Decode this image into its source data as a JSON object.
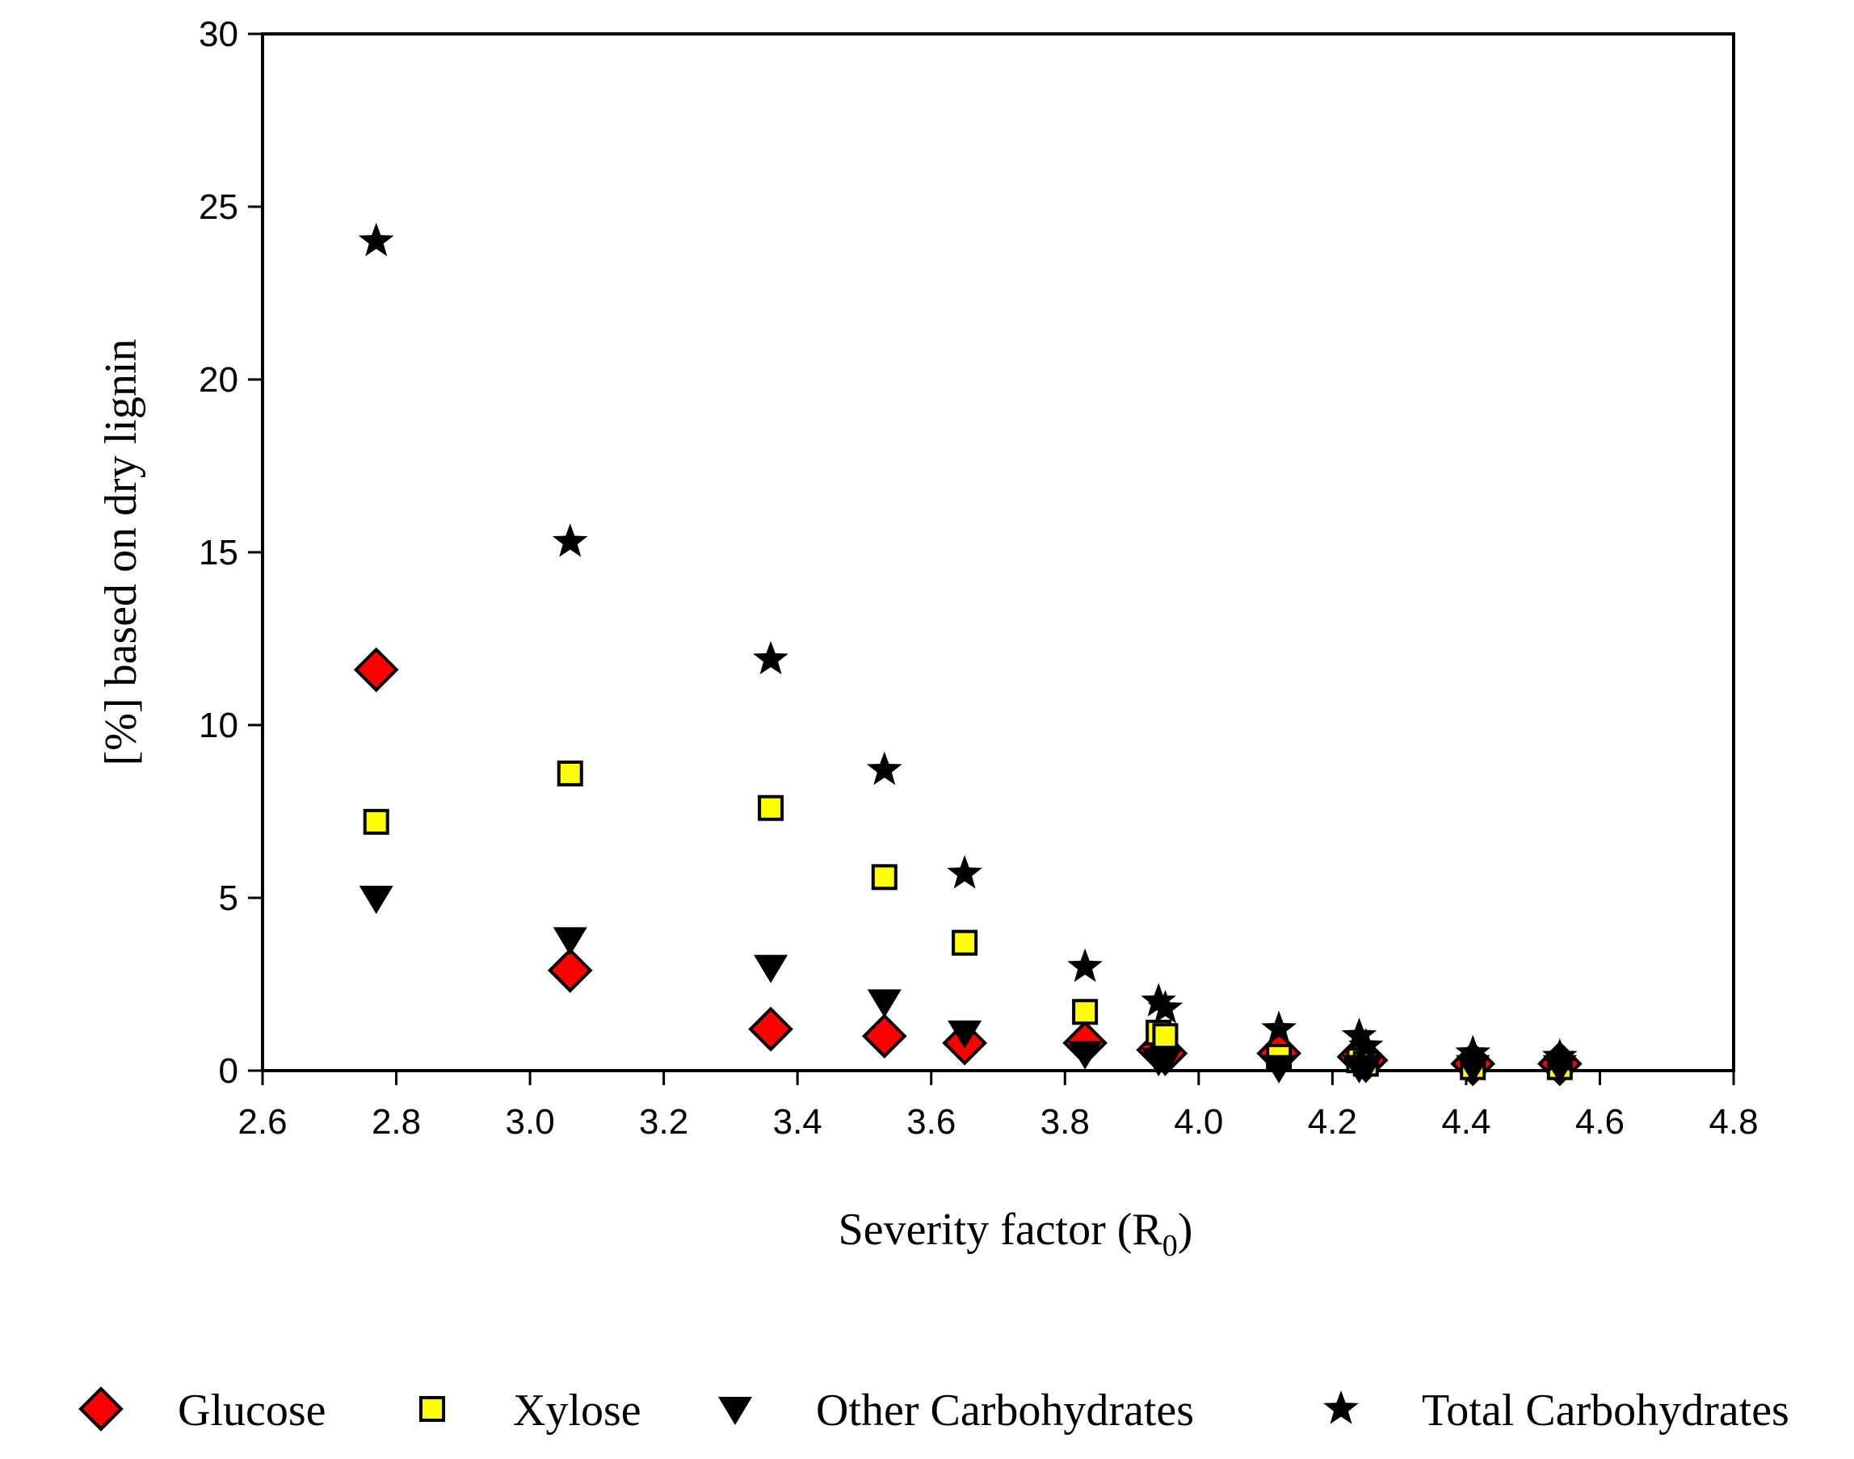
{
  "chart_data": {
    "type": "scatter",
    "title": "",
    "xlabel": "Severity factor (R",
    "xlabel_subscript": "0",
    "xlabel_suffix": ")",
    "ylabel": "[%] based on dry lignin",
    "xlim": [
      2.6,
      4.8
    ],
    "ylim": [
      0,
      30
    ],
    "x_ticks": [
      2.6,
      2.8,
      3.0,
      3.2,
      3.4,
      3.6,
      3.8,
      4.0,
      4.2,
      4.4,
      4.6,
      4.8
    ],
    "x_tick_labels": [
      "2.6",
      "2.8",
      "3.0",
      "3.2",
      "3.4",
      "3.6",
      "3.8",
      "4.0",
      "4.2",
      "4.4",
      "4.6",
      "4.8"
    ],
    "y_ticks": [
      0,
      5,
      10,
      15,
      20,
      25,
      30
    ],
    "y_tick_labels": [
      "0",
      "5",
      "10",
      "15",
      "20",
      "25",
      "30"
    ],
    "grid": false,
    "legend_position": "bottom",
    "x": [
      2.77,
      3.06,
      3.36,
      3.53,
      3.65,
      3.83,
      3.94,
      3.95,
      4.12,
      4.24,
      4.25,
      4.41,
      4.54
    ],
    "series": [
      {
        "name": "Glucose",
        "marker": "diamond",
        "color": "#ff0000",
        "values": [
          11.6,
          2.9,
          1.2,
          1.0,
          0.8,
          0.8,
          0.6,
          0.5,
          0.5,
          0.4,
          0.3,
          0.2,
          0.2
        ]
      },
      {
        "name": "Xylose",
        "marker": "square",
        "color": "#ffff00",
        "values": [
          7.2,
          8.6,
          7.6,
          5.6,
          3.7,
          1.7,
          1.1,
          1.0,
          0.4,
          0.3,
          0.2,
          0.1,
          0.1
        ]
      },
      {
        "name": "Other Carbohydrates",
        "marker": "triangle-down",
        "color": "#000000",
        "values": [
          5.0,
          3.8,
          3.0,
          2.0,
          1.1,
          0.5,
          0.3,
          0.3,
          0.1,
          0.1,
          0.1,
          0.1,
          0.1
        ]
      },
      {
        "name": "Total Carbohydrates",
        "marker": "star",
        "color": "#000000",
        "values": [
          24.0,
          15.3,
          11.9,
          8.7,
          5.7,
          3.0,
          2.0,
          1.8,
          1.2,
          1.0,
          0.7,
          0.5,
          0.4
        ]
      }
    ]
  }
}
